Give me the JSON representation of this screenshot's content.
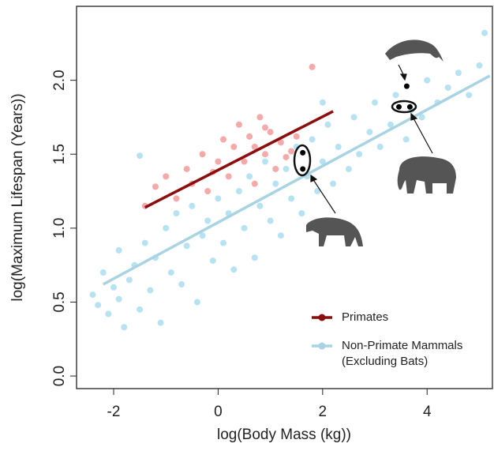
{
  "chart_data": {
    "type": "scatter",
    "x_label": "log(Body Mass (kg))",
    "y_label": "log(Maximum Lifespan (Years))",
    "xlim": [
      -2.71,
      5.25
    ],
    "ylim": [
      -0.085,
      2.5
    ],
    "xticks": [
      -2,
      0,
      2,
      4
    ],
    "yticks": [
      {
        "value": 0,
        "label": "0.0"
      },
      0.5,
      {
        "value": 1,
        "label": "1.0"
      },
      1.5,
      {
        "value": 2,
        "label": "2.0"
      }
    ],
    "legend": "bottom-right",
    "series": [
      {
        "name": "Non-Primate Mammals (Excluding Bats)",
        "color": "#a9ddf0",
        "line_color": "#a7d3e2",
        "x": [
          -2.4,
          -2.3,
          -2.2,
          -2.1,
          -2.0,
          -1.9,
          -1.9,
          -1.8,
          -1.7,
          -1.6,
          -1.5,
          -1.5,
          -1.4,
          -1.3,
          -1.2,
          -1.1,
          -1.0,
          -0.9,
          -0.8,
          -0.7,
          -0.6,
          -0.5,
          -0.4,
          -0.3,
          -0.2,
          -0.1,
          0.0,
          0.1,
          0.2,
          0.3,
          0.4,
          0.5,
          0.6,
          0.7,
          0.8,
          0.9,
          1.0,
          1.1,
          1.2,
          1.3,
          1.4,
          1.5,
          1.6,
          1.7,
          1.8,
          1.9,
          2.0,
          2.1,
          2.2,
          2.3,
          2.5,
          2.6,
          2.7,
          2.9,
          3.0,
          3.1,
          3.3,
          3.4,
          3.6,
          3.7,
          3.9,
          4.0,
          4.2,
          4.4,
          4.6,
          4.8,
          5.0,
          5.1,
          2.0
        ],
        "values": [
          0.55,
          0.48,
          0.7,
          0.42,
          0.6,
          0.52,
          0.85,
          0.33,
          0.65,
          0.75,
          0.45,
          1.49,
          0.9,
          0.58,
          0.8,
          0.36,
          1.0,
          0.7,
          1.1,
          0.62,
          0.88,
          1.15,
          0.5,
          0.95,
          1.05,
          0.78,
          1.2,
          0.9,
          1.1,
          0.72,
          1.25,
          1.0,
          1.35,
          0.8,
          1.15,
          1.45,
          1.05,
          1.3,
          0.95,
          1.4,
          1.2,
          1.55,
          1.1,
          1.35,
          1.6,
          1.25,
          1.45,
          1.7,
          1.3,
          1.55,
          1.4,
          1.75,
          1.5,
          1.65,
          1.85,
          1.55,
          1.7,
          1.9,
          1.6,
          1.8,
          1.75,
          2.0,
          1.85,
          1.95,
          2.05,
          1.9,
          2.1,
          2.32,
          1.85
        ],
        "trend": {
          "x": [
            -2.2,
            5.2
          ],
          "values": [
            0.62,
            2.03
          ]
        }
      },
      {
        "name": "Primates",
        "color": "#e8403f",
        "line_color": "#8b0d0d",
        "x": [
          -1.4,
          -1.2,
          -1.0,
          -0.8,
          -0.6,
          -0.5,
          -0.3,
          -0.2,
          0.0,
          0.1,
          0.2,
          0.3,
          0.4,
          0.5,
          0.6,
          0.7,
          0.8,
          0.9,
          1.0,
          1.1,
          1.2,
          1.3,
          0.7,
          0.9,
          -0.1,
          1.4,
          1.5,
          1.8
        ],
        "values": [
          1.15,
          1.28,
          1.35,
          1.2,
          1.4,
          1.3,
          1.5,
          1.25,
          1.45,
          1.6,
          1.35,
          1.55,
          1.7,
          1.45,
          1.62,
          1.3,
          1.75,
          1.5,
          1.65,
          1.4,
          1.58,
          1.48,
          1.55,
          1.68,
          1.38,
          1.52,
          1.62,
          2.09
        ],
        "trend": {
          "x": [
            -1.4,
            2.2
          ],
          "values": [
            1.14,
            1.79
          ]
        }
      }
    ],
    "highlighted_points": {
      "color": "#000000",
      "x": [
        1.62,
        1.62,
        3.46,
        3.67,
        3.61
      ],
      "values": [
        1.51,
        1.4,
        1.82,
        1.82,
        1.96
      ]
    }
  }
}
